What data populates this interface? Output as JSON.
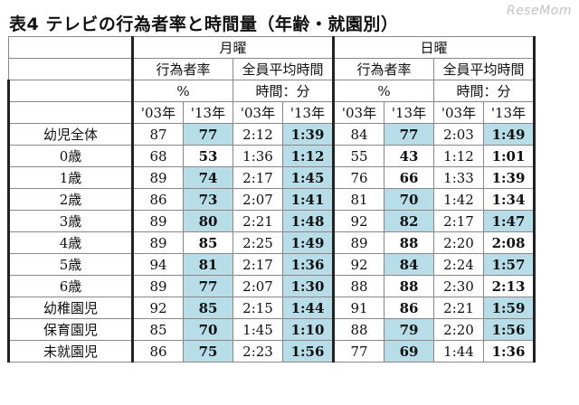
{
  "title": "表4  テレビの行為者率と時間量（年齢・就園別）",
  "watermark": "ReseMom",
  "headers": {
    "weekday": "月曜",
    "sunday": "日曜",
    "rate": "行為者率",
    "avg_time": "全員平均時間",
    "pct": "%",
    "hm": "時間：分",
    "y03": "'03年",
    "y13": "'13年"
  },
  "rows": [
    {
      "label": "幼児全体",
      "mr03": "87",
      "mr13": "77",
      "mt03": "2:12",
      "mt13": "1:39",
      "sr03": "84",
      "sr13": "77",
      "st03": "2:03",
      "st13": "1:49"
    },
    {
      "label": "0歳",
      "mr03": "68",
      "mr13": "53",
      "mt03": "1:36",
      "mt13": "1:12",
      "sr03": "55",
      "sr13": "43",
      "st03": "1:12",
      "st13": "1:01"
    },
    {
      "label": "1歳",
      "mr03": "89",
      "mr13": "74",
      "mt03": "2:17",
      "mt13": "1:45",
      "sr03": "76",
      "sr13": "66",
      "st03": "1:33",
      "st13": "1:39"
    },
    {
      "label": "2歳",
      "mr03": "86",
      "mr13": "73",
      "mt03": "2:07",
      "mt13": "1:41",
      "sr03": "81",
      "sr13": "70",
      "st03": "1:42",
      "st13": "1:34"
    },
    {
      "label": "3歳",
      "mr03": "89",
      "mr13": "80",
      "mt03": "2:21",
      "mt13": "1:48",
      "sr03": "92",
      "sr13": "82",
      "st03": "2:17",
      "st13": "1:47"
    },
    {
      "label": "4歳",
      "mr03": "89",
      "mr13": "85",
      "mt03": "2:25",
      "mt13": "1:49",
      "sr03": "89",
      "sr13": "88",
      "st03": "2:20",
      "st13": "2:08"
    },
    {
      "label": "5歳",
      "mr03": "94",
      "mr13": "81",
      "mt03": "2:17",
      "mt13": "1:36",
      "sr03": "92",
      "sr13": "84",
      "st03": "2:24",
      "st13": "1:57"
    },
    {
      "label": "6歳",
      "mr03": "89",
      "mr13": "77",
      "mt03": "2:07",
      "mt13": "1:30",
      "sr03": "88",
      "sr13": "88",
      "st03": "2:30",
      "st13": "2:13"
    },
    {
      "label": "幼稚園児",
      "mr03": "92",
      "mr13": "85",
      "mt03": "2:15",
      "mt13": "1:44",
      "sr03": "91",
      "sr13": "86",
      "st03": "2:21",
      "st13": "1:59"
    },
    {
      "label": "保育園児",
      "mr03": "85",
      "mr13": "70",
      "mt03": "1:45",
      "mt13": "1:10",
      "sr03": "88",
      "sr13": "79",
      "st03": "2:20",
      "st13": "1:56"
    },
    {
      "label": "未就園児",
      "mr03": "86",
      "mr13": "75",
      "mt03": "2:23",
      "mt13": "1:56",
      "sr03": "77",
      "sr13": "69",
      "st03": "1:44",
      "st13": "1:36"
    }
  ],
  "highlight_color": "#b6dde8"
}
